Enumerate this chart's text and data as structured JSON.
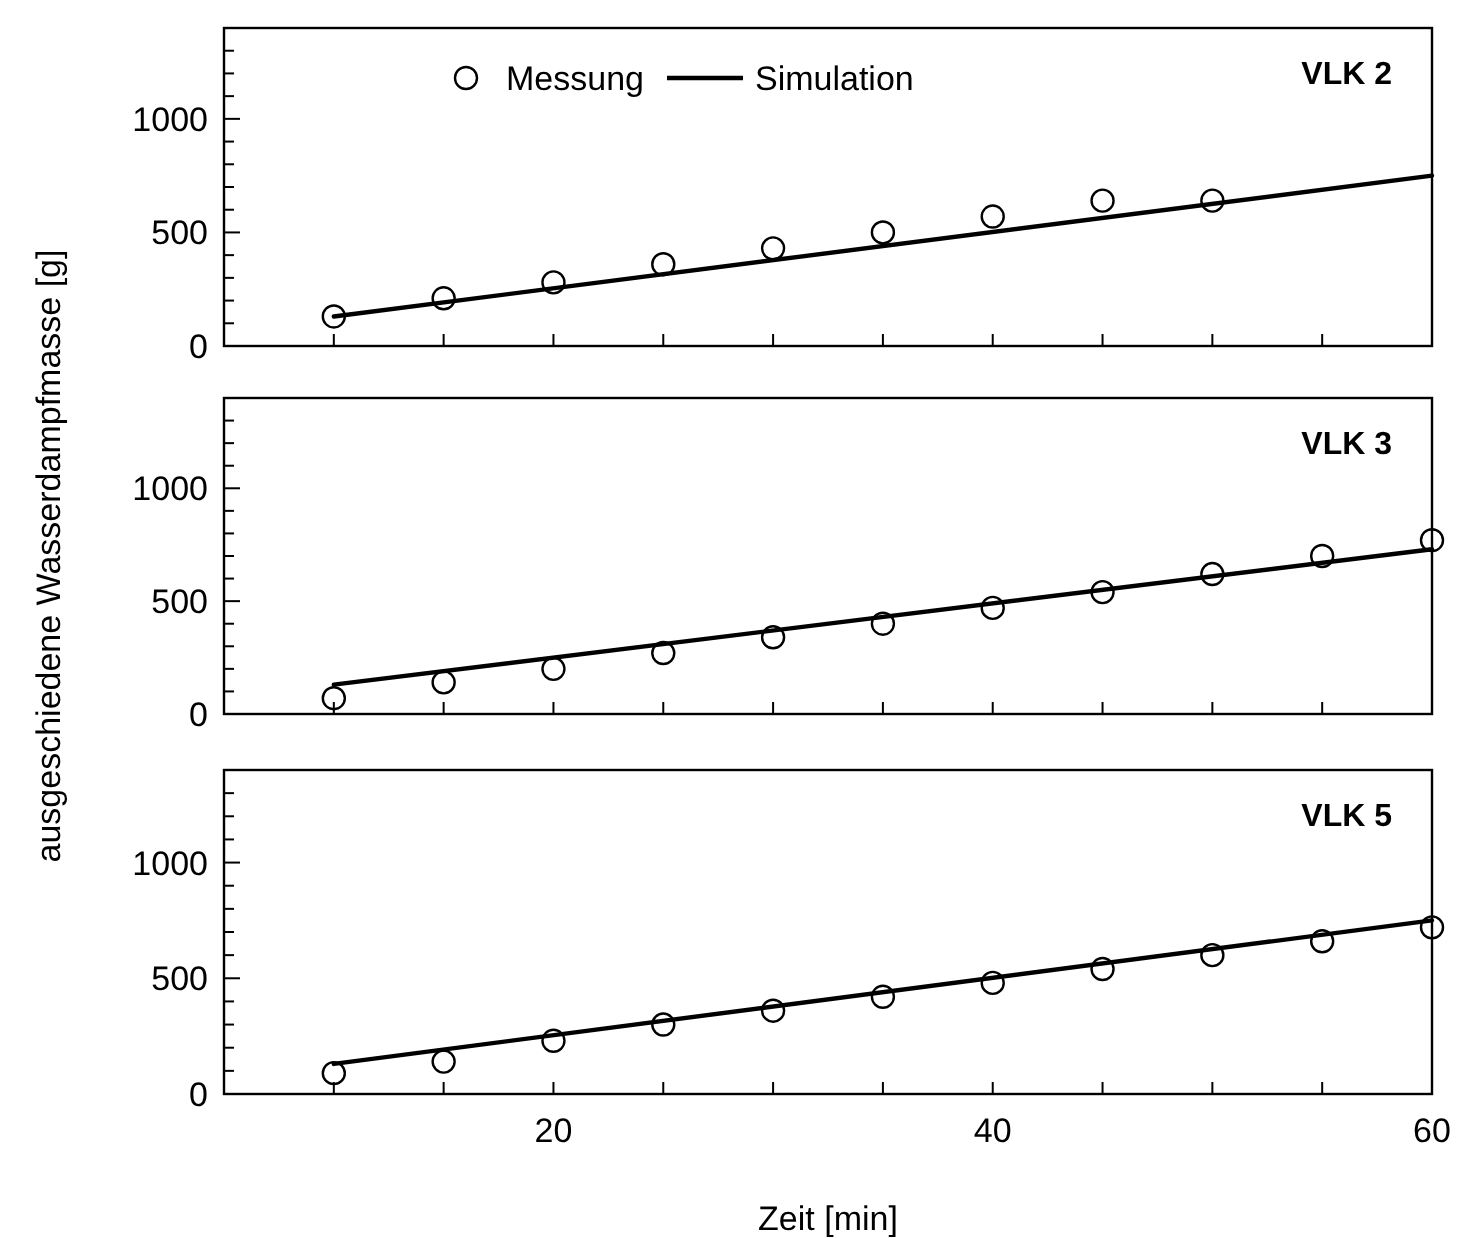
{
  "chart_data": [
    {
      "type": "scatter",
      "title": "VLK 2",
      "xlim": [
        5,
        60
      ],
      "xticks": [
        {
          "value": 10,
          "label": null
        },
        {
          "value": 15,
          "label": null
        },
        20,
        {
          "value": 25,
          "label": null
        },
        {
          "value": 30,
          "label": null
        },
        {
          "value": 35,
          "label": null
        },
        40,
        {
          "value": 45,
          "label": null
        },
        {
          "value": 50,
          "label": null
        },
        {
          "value": 55,
          "label": null
        },
        60
      ],
      "ylim": [
        0,
        1400
      ],
      "yticks": [
        0,
        {
          "value": 100,
          "label": null
        },
        {
          "value": 200,
          "label": null
        },
        {
          "value": 300,
          "label": null
        },
        {
          "value": 400,
          "label": null
        },
        500,
        {
          "value": 600,
          "label": null
        },
        {
          "value": 700,
          "label": null
        },
        {
          "value": 800,
          "label": null
        },
        {
          "value": 900,
          "label": null
        },
        1000,
        {
          "value": 1100,
          "label": null
        },
        {
          "value": 1200,
          "label": null
        },
        {
          "value": 1300,
          "label": null
        }
      ],
      "tick_labels": "y",
      "legend": "top",
      "series": [
        {
          "name": "Messung",
          "color": "#000000",
          "x": [
            10,
            15,
            20,
            25,
            30,
            35,
            40,
            45,
            50
          ],
          "values": [
            130,
            210,
            280,
            360,
            430,
            500,
            570,
            640,
            640
          ]
        },
        {
          "name": "Simulation",
          "type": "line",
          "color": "#000000",
          "x": [
            10,
            60
          ],
          "values": [
            130,
            750
          ]
        }
      ]
    },
    {
      "type": "scatter",
      "title": "VLK 3",
      "ylabel": "ausgeschiedene Wasserdampfmasse  [g]",
      "xlim": [
        5,
        60
      ],
      "xticks": [
        {
          "value": 10,
          "label": null
        },
        {
          "value": 15,
          "label": null
        },
        20,
        {
          "value": 25,
          "label": null
        },
        {
          "value": 30,
          "label": null
        },
        {
          "value": 35,
          "label": null
        },
        40,
        {
          "value": 45,
          "label": null
        },
        {
          "value": 50,
          "label": null
        },
        {
          "value": 55,
          "label": null
        },
        60
      ],
      "ylim": [
        0,
        1400
      ],
      "yticks": [
        0,
        {
          "value": 100,
          "label": null
        },
        {
          "value": 200,
          "label": null
        },
        {
          "value": 300,
          "label": null
        },
        {
          "value": 400,
          "label": null
        },
        500,
        {
          "value": 600,
          "label": null
        },
        {
          "value": 700,
          "label": null
        },
        {
          "value": 800,
          "label": null
        },
        {
          "value": 900,
          "label": null
        },
        1000,
        {
          "value": 1100,
          "label": null
        },
        {
          "value": 1200,
          "label": null
        },
        {
          "value": 1300,
          "label": null
        }
      ],
      "tick_labels": "y",
      "series": [
        {
          "color": "#000000",
          "x": [
            10,
            15,
            20,
            25,
            30,
            35,
            40,
            45,
            50,
            55,
            60
          ],
          "values": [
            70,
            140,
            200,
            270,
            340,
            400,
            470,
            540,
            620,
            700,
            770
          ]
        },
        {
          "type": "line",
          "color": "#000000",
          "x": [
            10,
            60
          ],
          "values": [
            130,
            730
          ]
        }
      ]
    },
    {
      "type": "scatter",
      "title": "VLK 5",
      "xlabel": "Zeit  [min]",
      "xlim": [
        5,
        60
      ],
      "xticks": [
        {
          "value": 10,
          "label": null
        },
        {
          "value": 15,
          "label": null
        },
        20,
        {
          "value": 25,
          "label": null
        },
        {
          "value": 30,
          "label": null
        },
        {
          "value": 35,
          "label": null
        },
        40,
        {
          "value": 45,
          "label": null
        },
        {
          "value": 50,
          "label": null
        },
        {
          "value": 55,
          "label": null
        },
        60
      ],
      "ylim": [
        0,
        1400
      ],
      "yticks": [
        0,
        {
          "value": 100,
          "label": null
        },
        {
          "value": 200,
          "label": null
        },
        {
          "value": 300,
          "label": null
        },
        {
          "value": 400,
          "label": null
        },
        500,
        {
          "value": 600,
          "label": null
        },
        {
          "value": 700,
          "label": null
        },
        {
          "value": 800,
          "label": null
        },
        {
          "value": 900,
          "label": null
        },
        1000,
        {
          "value": 1100,
          "label": null
        },
        {
          "value": 1200,
          "label": null
        },
        {
          "value": 1300,
          "label": null
        }
      ],
      "series": [
        {
          "color": "#000000",
          "x": [
            10,
            15,
            20,
            25,
            30,
            35,
            40,
            45,
            50,
            55,
            60
          ],
          "values": [
            90,
            140,
            230,
            300,
            360,
            420,
            480,
            540,
            600,
            660,
            720
          ]
        },
        {
          "type": "line",
          "color": "#000000",
          "x": [
            10,
            60
          ],
          "values": [
            130,
            750
          ]
        }
      ]
    }
  ]
}
